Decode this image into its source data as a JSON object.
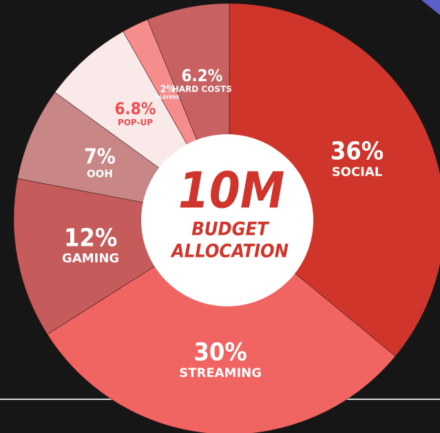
{
  "chart_data": {
    "type": "donut",
    "center_texts": [
      "10M",
      "BUDGET",
      "ALLOCATION"
    ],
    "categories": [
      "SOCIAL",
      "STREAMING",
      "GAMING",
      "OOH",
      "POP-UP",
      "PLAYERS",
      "HARD COSTS"
    ],
    "values": [
      36,
      30,
      12,
      7,
      6.8,
      2,
      6.2
    ],
    "value_labels": [
      "36%",
      "30%",
      "12%",
      "7%",
      "6.8%",
      "2%",
      "6.2%"
    ],
    "colors": [
      "#d0352b",
      "#f06462",
      "#c65b5b",
      "#c98686",
      "#f9e9e9",
      "#f58d8d",
      "#c86262"
    ],
    "label_colors": [
      "#ffffff",
      "#ffffff",
      "#ffffff",
      "#ffffff",
      "#f04e4e",
      "#ffffff",
      "#ffffff"
    ]
  }
}
